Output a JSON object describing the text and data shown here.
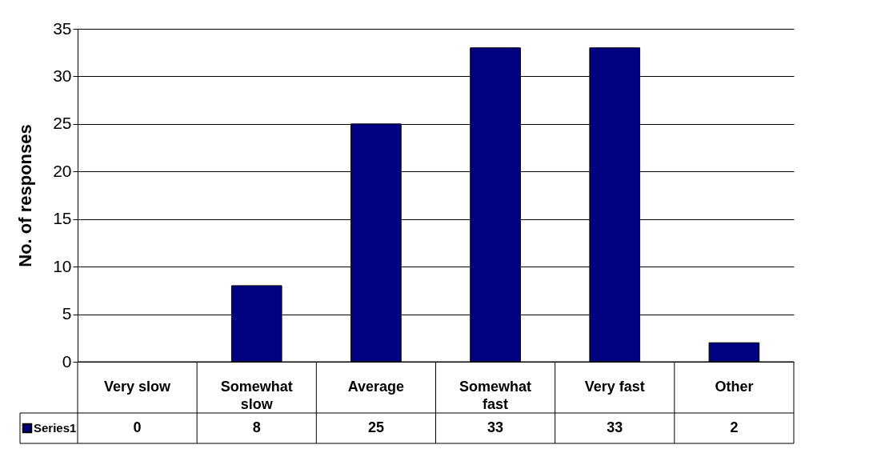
{
  "chart_data": {
    "type": "bar",
    "ylabel": "No. of responses",
    "categories": [
      "Very slow",
      "Somewhat slow",
      "Average",
      "Somewhat fast",
      "Very fast",
      "Other"
    ],
    "series": [
      {
        "name": "Series1",
        "color": "#000080",
        "values": [
          0,
          8,
          25,
          33,
          33,
          2
        ]
      }
    ],
    "ylim": [
      0,
      35
    ],
    "yticks": [
      0,
      5,
      10,
      15,
      20,
      25,
      30,
      35
    ],
    "grid": "y",
    "data_labels": true
  }
}
